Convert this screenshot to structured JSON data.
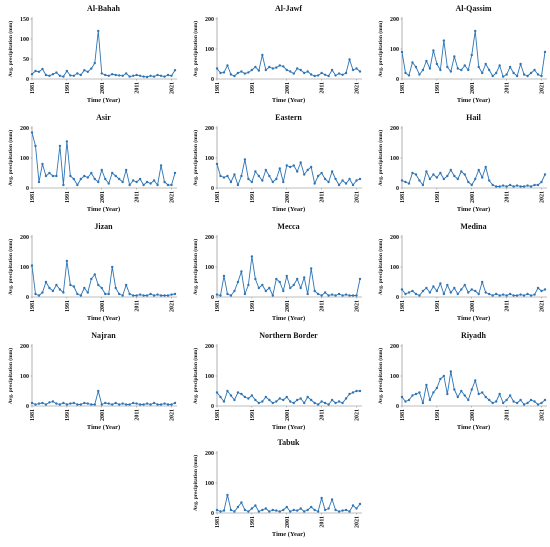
{
  "figure": {
    "colors": {
      "series": "#2e75b6",
      "axis": "#7f7f7f",
      "text": "#111111"
    },
    "grid": false
  },
  "chart_data": [
    {
      "type": "line",
      "title": "Al-Bahah",
      "xlabel": "Time (Year)",
      "ylabel": "Avg. precipitation (mm)",
      "ylim": [
        0,
        150
      ],
      "yticks": [
        0,
        50,
        100,
        150
      ],
      "xticks": [
        1981,
        1991,
        2001,
        2011,
        2021
      ],
      "xlim": [
        1981,
        2022
      ],
      "x": [
        1981,
        1982,
        1983,
        1984,
        1985,
        1986,
        1987,
        1988,
        1989,
        1990,
        1991,
        1992,
        1993,
        1994,
        1995,
        1996,
        1997,
        1998,
        1999,
        2000,
        2001,
        2002,
        2003,
        2004,
        2005,
        2006,
        2007,
        2008,
        2009,
        2010,
        2011,
        2012,
        2013,
        2014,
        2015,
        2016,
        2017,
        2018,
        2019,
        2020,
        2021,
        2022
      ],
      "values": [
        12,
        20,
        18,
        25,
        10,
        8,
        12,
        16,
        8,
        6,
        20,
        9,
        8,
        14,
        10,
        22,
        18,
        26,
        40,
        120,
        14,
        10,
        8,
        12,
        10,
        9,
        8,
        14,
        6,
        8,
        10,
        8,
        6,
        5,
        8,
        6,
        10,
        8,
        6,
        10,
        8,
        22
      ]
    },
    {
      "type": "line",
      "title": "Al-Jawf",
      "xlabel": "Time (Year)",
      "ylabel": "Avg. precipitation (mm)",
      "ylim": [
        0,
        200
      ],
      "yticks": [
        0,
        100,
        200
      ],
      "xticks": [
        1981,
        1991,
        2001,
        2011,
        2021
      ],
      "xlim": [
        1981,
        2022
      ],
      "x": [
        1981,
        1982,
        1983,
        1984,
        1985,
        1986,
        1987,
        1988,
        1989,
        1990,
        1991,
        1992,
        1993,
        1994,
        1995,
        1996,
        1997,
        1998,
        1999,
        2000,
        2001,
        2002,
        2003,
        2004,
        2005,
        2006,
        2007,
        2008,
        2009,
        2010,
        2011,
        2012,
        2013,
        2014,
        2015,
        2016,
        2017,
        2018,
        2019,
        2020,
        2021,
        2022
      ],
      "values": [
        35,
        20,
        22,
        45,
        15,
        10,
        20,
        25,
        18,
        22,
        30,
        40,
        28,
        80,
        30,
        40,
        35,
        38,
        45,
        42,
        30,
        25,
        18,
        35,
        30,
        20,
        25,
        15,
        10,
        12,
        20,
        14,
        10,
        30,
        12,
        18,
        14,
        20,
        65,
        30,
        35,
        25
      ]
    },
    {
      "type": "line",
      "title": "Al-Qassim",
      "xlabel": "Time (Year)",
      "ylabel": "Avg. precipitation (mm)",
      "ylim": [
        0,
        200
      ],
      "yticks": [
        0,
        100,
        200
      ],
      "xticks": [
        1981,
        1991,
        2001,
        2011,
        2021
      ],
      "xlim": [
        1981,
        2022
      ],
      "x": [
        1981,
        1982,
        1983,
        1984,
        1985,
        1986,
        1987,
        1988,
        1989,
        1990,
        1991,
        1992,
        1993,
        1994,
        1995,
        1996,
        1997,
        1998,
        1999,
        2000,
        2001,
        2002,
        2003,
        2004,
        2005,
        2006,
        2007,
        2008,
        2009,
        2010,
        2011,
        2012,
        2013,
        2014,
        2015,
        2016,
        2017,
        2018,
        2019,
        2020,
        2021,
        2022
      ],
      "values": [
        90,
        20,
        12,
        55,
        40,
        15,
        30,
        60,
        35,
        95,
        50,
        30,
        128,
        40,
        25,
        75,
        35,
        30,
        45,
        30,
        80,
        160,
        40,
        20,
        50,
        30,
        10,
        20,
        45,
        8,
        15,
        40,
        20,
        10,
        50,
        15,
        10,
        20,
        30,
        15,
        10,
        90
      ]
    },
    {
      "type": "line",
      "title": "Asir",
      "xlabel": "Time (Year)",
      "ylabel": "Avg. precipitation (mm)",
      "ylim": [
        0,
        200
      ],
      "yticks": [
        0,
        100,
        200
      ],
      "xticks": [
        1981,
        1991,
        2001,
        2011,
        2021
      ],
      "xlim": [
        1981,
        2022
      ],
      "x": [
        1981,
        1982,
        1983,
        1984,
        1985,
        1986,
        1987,
        1988,
        1989,
        1990,
        1991,
        1992,
        1993,
        1994,
        1995,
        1996,
        1997,
        1998,
        1999,
        2000,
        2001,
        2002,
        2003,
        2004,
        2005,
        2006,
        2007,
        2008,
        2009,
        2010,
        2011,
        2012,
        2013,
        2014,
        2015,
        2016,
        2017,
        2018,
        2019,
        2020,
        2021,
        2022
      ],
      "values": [
        185,
        140,
        20,
        80,
        40,
        50,
        40,
        40,
        140,
        10,
        155,
        40,
        30,
        10,
        30,
        40,
        35,
        50,
        30,
        20,
        60,
        30,
        15,
        50,
        40,
        30,
        20,
        60,
        10,
        25,
        20,
        30,
        10,
        20,
        15,
        25,
        10,
        75,
        20,
        10,
        10,
        50
      ]
    },
    {
      "type": "line",
      "title": "Eastern",
      "xlabel": "Time (Year)",
      "ylabel": "Avg. precipitation (mm)",
      "ylim": [
        0,
        200
      ],
      "yticks": [
        0,
        100,
        200
      ],
      "xticks": [
        1981,
        1991,
        2001,
        2011,
        2021
      ],
      "xlim": [
        1981,
        2022
      ],
      "x": [
        1981,
        1982,
        1983,
        1984,
        1985,
        1986,
        1987,
        1988,
        1989,
        1990,
        1991,
        1992,
        1993,
        1994,
        1995,
        1996,
        1997,
        1998,
        1999,
        2000,
        2001,
        2002,
        2003,
        2004,
        2005,
        2006,
        2007,
        2008,
        2009,
        2010,
        2011,
        2012,
        2013,
        2014,
        2015,
        2016,
        2017,
        2018,
        2019,
        2020,
        2021,
        2022
      ],
      "values": [
        80,
        40,
        35,
        40,
        20,
        45,
        10,
        40,
        95,
        30,
        20,
        55,
        40,
        25,
        60,
        40,
        20,
        30,
        65,
        20,
        75,
        70,
        75,
        55,
        85,
        45,
        60,
        70,
        15,
        40,
        50,
        30,
        20,
        55,
        30,
        10,
        25,
        15,
        30,
        10,
        25,
        30
      ]
    },
    {
      "type": "line",
      "title": "Hail",
      "xlabel": "Time (Year)",
      "ylabel": "Avg. precipitation (mm)",
      "ylim": [
        0,
        200
      ],
      "yticks": [
        0,
        100,
        200
      ],
      "xticks": [
        1981,
        1991,
        2001,
        2011,
        2021
      ],
      "xlim": [
        1981,
        2022
      ],
      "x": [
        1981,
        1982,
        1983,
        1984,
        1985,
        1986,
        1987,
        1988,
        1989,
        1990,
        1991,
        1992,
        1993,
        1994,
        1995,
        1996,
        1997,
        1998,
        1999,
        2000,
        2001,
        2002,
        2003,
        2004,
        2005,
        2006,
        2007,
        2008,
        2009,
        2010,
        2011,
        2012,
        2013,
        2014,
        2015,
        2016,
        2017,
        2018,
        2019,
        2020,
        2021,
        2022
      ],
      "values": [
        25,
        20,
        15,
        50,
        45,
        25,
        10,
        55,
        30,
        45,
        35,
        50,
        30,
        40,
        60,
        40,
        30,
        55,
        45,
        20,
        10,
        30,
        60,
        35,
        70,
        25,
        10,
        5,
        5,
        8,
        5,
        10,
        5,
        8,
        5,
        5,
        8,
        5,
        10,
        10,
        20,
        45
      ]
    },
    {
      "type": "line",
      "title": "Jizan",
      "xlabel": "Time (Year)",
      "ylabel": "Avg. precipitation (mm)",
      "ylim": [
        0,
        200
      ],
      "yticks": [
        0,
        100,
        200
      ],
      "xticks": [
        1981,
        1991,
        2001,
        2011,
        2021
      ],
      "xlim": [
        1981,
        2022
      ],
      "x": [
        1981,
        1982,
        1983,
        1984,
        1985,
        1986,
        1987,
        1988,
        1989,
        1990,
        1991,
        1992,
        1993,
        1994,
        1995,
        1996,
        1997,
        1998,
        1999,
        2000,
        2001,
        2002,
        2003,
        2004,
        2005,
        2006,
        2007,
        2008,
        2009,
        2010,
        2011,
        2012,
        2013,
        2014,
        2015,
        2016,
        2017,
        2018,
        2019,
        2020,
        2021,
        2022
      ],
      "values": [
        105,
        10,
        5,
        15,
        50,
        30,
        20,
        40,
        25,
        15,
        120,
        40,
        35,
        10,
        5,
        30,
        15,
        60,
        75,
        40,
        30,
        10,
        10,
        100,
        30,
        10,
        5,
        40,
        10,
        5,
        5,
        8,
        5,
        5,
        10,
        5,
        8,
        5,
        5,
        5,
        8,
        10
      ]
    },
    {
      "type": "line",
      "title": "Mecca",
      "xlabel": "Time (Year)",
      "ylabel": "Avg. precipitation (mm)",
      "ylim": [
        0,
        200
      ],
      "yticks": [
        0,
        100,
        200
      ],
      "xticks": [
        1981,
        1991,
        2001,
        2011,
        2021
      ],
      "xlim": [
        1981,
        2022
      ],
      "x": [
        1981,
        1982,
        1983,
        1984,
        1985,
        1986,
        1987,
        1988,
        1989,
        1990,
        1991,
        1992,
        1993,
        1994,
        1995,
        1996,
        1997,
        1998,
        1999,
        2000,
        2001,
        2002,
        2003,
        2004,
        2005,
        2006,
        2007,
        2008,
        2009,
        2010,
        2011,
        2012,
        2013,
        2014,
        2015,
        2016,
        2017,
        2018,
        2019,
        2020,
        2021,
        2022
      ],
      "values": [
        8,
        5,
        70,
        10,
        5,
        20,
        50,
        85,
        10,
        40,
        135,
        60,
        30,
        40,
        20,
        30,
        5,
        60,
        50,
        20,
        70,
        30,
        40,
        60,
        30,
        65,
        10,
        95,
        20,
        10,
        5,
        15,
        5,
        8,
        5,
        10,
        5,
        8,
        5,
        5,
        5,
        60
      ]
    },
    {
      "type": "line",
      "title": "Medina",
      "xlabel": "Time (Year)",
      "ylabel": "Avg. precipitation (mm)",
      "ylim": [
        0,
        200
      ],
      "yticks": [
        0,
        100,
        200
      ],
      "xticks": [
        1981,
        1991,
        2001,
        2011,
        2021
      ],
      "xlim": [
        1981,
        2022
      ],
      "x": [
        1981,
        1982,
        1983,
        1984,
        1985,
        1986,
        1987,
        1988,
        1989,
        1990,
        1991,
        1992,
        1993,
        1994,
        1995,
        1996,
        1997,
        1998,
        1999,
        2000,
        2001,
        2002,
        2003,
        2004,
        2005,
        2006,
        2007,
        2008,
        2009,
        2010,
        2011,
        2012,
        2013,
        2014,
        2015,
        2016,
        2017,
        2018,
        2019,
        2020,
        2021,
        2022
      ],
      "values": [
        25,
        10,
        15,
        20,
        10,
        5,
        20,
        30,
        15,
        35,
        20,
        45,
        10,
        40,
        15,
        30,
        10,
        25,
        40,
        15,
        25,
        20,
        10,
        50,
        15,
        10,
        5,
        10,
        5,
        8,
        5,
        10,
        5,
        5,
        8,
        5,
        10,
        5,
        8,
        30,
        20,
        25
      ]
    },
    {
      "type": "line",
      "title": "Najran",
      "xlabel": "Time (Year)",
      "ylabel": "Avg. precipitation (mm)",
      "ylim": [
        0,
        200
      ],
      "yticks": [
        0,
        100,
        200
      ],
      "xticks": [
        1981,
        1991,
        2001,
        2011,
        2021
      ],
      "xlim": [
        1981,
        2022
      ],
      "x": [
        1981,
        1982,
        1983,
        1984,
        1985,
        1986,
        1987,
        1988,
        1989,
        1990,
        1991,
        1992,
        1993,
        1994,
        1995,
        1996,
        1997,
        1998,
        1999,
        2000,
        2001,
        2002,
        2003,
        2004,
        2005,
        2006,
        2007,
        2008,
        2009,
        2010,
        2011,
        2012,
        2013,
        2014,
        2015,
        2016,
        2017,
        2018,
        2019,
        2020,
        2021,
        2022
      ],
      "values": [
        10,
        5,
        8,
        10,
        5,
        12,
        15,
        8,
        5,
        10,
        5,
        8,
        10,
        5,
        5,
        10,
        8,
        5,
        5,
        50,
        5,
        10,
        8,
        5,
        10,
        5,
        8,
        5,
        5,
        10,
        8,
        5,
        5,
        8,
        5,
        10,
        5,
        5,
        8,
        5,
        5,
        10
      ]
    },
    {
      "type": "line",
      "title": "Northern Border",
      "xlabel": "Time (Year)",
      "ylabel": "Avg. precipitation (mm)",
      "ylim": [
        0,
        200
      ],
      "yticks": [
        0,
        100,
        200
      ],
      "xticks": [
        1981,
        1991,
        2001,
        2011,
        2021
      ],
      "xlim": [
        1981,
        2022
      ],
      "x": [
        1981,
        1982,
        1983,
        1984,
        1985,
        1986,
        1987,
        1988,
        1989,
        1990,
        1991,
        1992,
        1993,
        1994,
        1995,
        1996,
        1997,
        1998,
        1999,
        2000,
        2001,
        2002,
        2003,
        2004,
        2005,
        2006,
        2007,
        2008,
        2009,
        2010,
        2011,
        2012,
        2013,
        2014,
        2015,
        2016,
        2017,
        2018,
        2019,
        2020,
        2021,
        2022
      ],
      "values": [
        45,
        30,
        15,
        50,
        35,
        20,
        45,
        40,
        30,
        25,
        35,
        20,
        10,
        15,
        30,
        20,
        10,
        15,
        25,
        20,
        30,
        15,
        10,
        20,
        25,
        10,
        30,
        20,
        10,
        5,
        15,
        10,
        5,
        20,
        10,
        15,
        10,
        25,
        40,
        45,
        50,
        50
      ]
    },
    {
      "type": "line",
      "title": "Riyadh",
      "xlabel": "Time (Year)",
      "ylabel": "Avg. precipitation (mm)",
      "ylim": [
        0,
        200
      ],
      "yticks": [
        0,
        100,
        200
      ],
      "xticks": [
        1981,
        1991,
        2001,
        2011,
        2021
      ],
      "xlim": [
        1981,
        2022
      ],
      "x": [
        1981,
        1982,
        1983,
        1984,
        1985,
        1986,
        1987,
        1988,
        1989,
        1990,
        1991,
        1992,
        1993,
        1994,
        1995,
        1996,
        1997,
        1998,
        1999,
        2000,
        2001,
        2002,
        2003,
        2004,
        2005,
        2006,
        2007,
        2008,
        2009,
        2010,
        2011,
        2012,
        2013,
        2014,
        2015,
        2016,
        2017,
        2018,
        2019,
        2020,
        2021,
        2022
      ],
      "values": [
        30,
        15,
        20,
        35,
        40,
        45,
        10,
        70,
        20,
        45,
        60,
        90,
        100,
        40,
        115,
        55,
        30,
        50,
        35,
        20,
        55,
        85,
        40,
        45,
        30,
        20,
        10,
        15,
        40,
        10,
        20,
        35,
        15,
        10,
        20,
        5,
        10,
        20,
        15,
        5,
        10,
        20
      ]
    },
    {
      "type": "line",
      "title": "Tabuk",
      "xlabel": "Time (Year)",
      "ylabel": "Avg. precipitation (mm)",
      "ylim": [
        0,
        200
      ],
      "yticks": [
        0,
        100,
        200
      ],
      "xticks": [
        1981,
        1991,
        2001,
        2011,
        2021
      ],
      "xlim": [
        1981,
        2022
      ],
      "x": [
        1981,
        1982,
        1983,
        1984,
        1985,
        1986,
        1987,
        1988,
        1989,
        1990,
        1991,
        1992,
        1993,
        1994,
        1995,
        1996,
        1997,
        1998,
        1999,
        2000,
        2001,
        2002,
        2003,
        2004,
        2005,
        2006,
        2007,
        2008,
        2009,
        2010,
        2011,
        2012,
        2013,
        2014,
        2015,
        2016,
        2017,
        2018,
        2019,
        2020,
        2021,
        2022
      ],
      "values": [
        10,
        5,
        8,
        60,
        10,
        5,
        20,
        35,
        10,
        5,
        15,
        25,
        5,
        10,
        15,
        5,
        10,
        8,
        5,
        10,
        20,
        5,
        10,
        8,
        15,
        5,
        10,
        20,
        10,
        5,
        50,
        10,
        15,
        45,
        10,
        5,
        8,
        10,
        5,
        25,
        15,
        30
      ]
    }
  ]
}
